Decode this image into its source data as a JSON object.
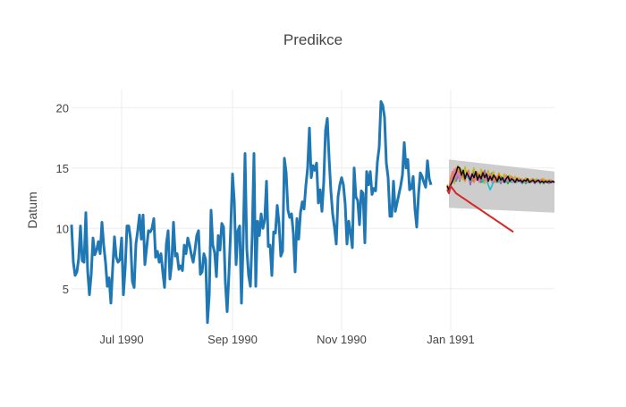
{
  "chart_data": {
    "type": "line",
    "title": "Predikce",
    "xlabel": "",
    "ylabel": "Datum",
    "x_range": [
      "1990-06-03",
      "1991-02-28"
    ],
    "ylim": [
      1.5,
      21.5
    ],
    "grid": true,
    "legend": "none",
    "x_ticks": [
      {
        "date": "1990-07-01",
        "label": "Jul 1990"
      },
      {
        "date": "1990-09-01",
        "label": "Sep 1990"
      },
      {
        "date": "1990-11-01",
        "label": "Nov 1990"
      },
      {
        "date": "1991-01-01",
        "label": "Jan 1991"
      }
    ],
    "y_ticks": [
      {
        "value": 5,
        "label": "5"
      },
      {
        "value": 10,
        "label": "10"
      },
      {
        "value": 15,
        "label": "15"
      },
      {
        "value": 20,
        "label": "20"
      }
    ],
    "colors": {
      "history": "#1f77b4",
      "band": "#c4c4c4",
      "trend": "#d62728",
      "grid": "#eeeeee",
      "forecasts": [
        "#2ca02c",
        "#9467bd",
        "#bcbd22",
        "#17becf",
        "#ff7f0e",
        "#e377c2",
        "#111111"
      ]
    },
    "history": {
      "start": "1990-06-03",
      "step_days": 1,
      "values": [
        10.3,
        7.2,
        6.1,
        6.4,
        7.5,
        10.2,
        7.3,
        7.2,
        11.3,
        6.5,
        4.5,
        6.2,
        9.2,
        7.8,
        8.2,
        8.9,
        7.9,
        10.5,
        8.6,
        7.2,
        5.2,
        5.9,
        3.8,
        6.7,
        9.3,
        7.6,
        7.2,
        7.4,
        9.2,
        4.5,
        6.7,
        10.2,
        10.2,
        9.1,
        5.6,
        5.1,
        8.7,
        9.8,
        11.1,
        9.1,
        11.1,
        7.0,
        8.4,
        9.8,
        9.7,
        10.0,
        10.8,
        7.6,
        8.1,
        7.2,
        7.9,
        6.4,
        5.1,
        8.7,
        9.8,
        5.8,
        7.1,
        10.5,
        7.7,
        7.9,
        6.6,
        6.9,
        6.5,
        8.6,
        7.9,
        9.2,
        8.6,
        7.8,
        7.2,
        8.2,
        9.4,
        9.8,
        6.2,
        6.4,
        7.9,
        7.4,
        2.2,
        4.5,
        11.5,
        8.6,
        8.0,
        6.0,
        9.4,
        8.2,
        10.4,
        10.1,
        5.5,
        3.1,
        6.2,
        10.0,
        14.5,
        12.2,
        7.0,
        9.8,
        10.2,
        3.8,
        9.2,
        16.2,
        8.3,
        6.1,
        5.2,
        9.4,
        16.2,
        5.2,
        10.6,
        9.4,
        11.2,
        10.0,
        10.7,
        13.9,
        8.5,
        8.6,
        6.1,
        9.7,
        9.6,
        11.9,
        10.4,
        7.7,
        8.1,
        15.8,
        14.6,
        11.5,
        10.9,
        11.2,
        9.6,
        6.4,
        10.8,
        9.1,
        11.3,
        12.2,
        11.6,
        13.5,
        15.0,
        18.3,
        14.2,
        15.2,
        14.8,
        15.4,
        12.1,
        13.2,
        11.4,
        13.8,
        18.1,
        19.1,
        15.8,
        13.1,
        11.2,
        10.1,
        8.7,
        12.6,
        13.6,
        14.2,
        13.6,
        12.0,
        8.7,
        10.6,
        9.6,
        8.4,
        15.0,
        12.6,
        12.3,
        10.3,
        13.1,
        12.9,
        8.8,
        14.7,
        13.6,
        14.7,
        12.8,
        13.3,
        13.1,
        15.5,
        16.7,
        20.5,
        20.2,
        19.2,
        15.4,
        14.2,
        11.0,
        11.0,
        13.9,
        11.4,
        12.1,
        12.8,
        13.5,
        14.4,
        17.1,
        15.0,
        15.7,
        13.2,
        13.3,
        14.3,
        11.6,
        10.1,
        12.8,
        14.6,
        14.3,
        13.8,
        13.4,
        15.6,
        14.1,
        13.6
      ]
    },
    "band": {
      "start": "1990-12-31",
      "end": "1991-02-28",
      "upper_start": 15.7,
      "upper_end": 14.7,
      "lower_start": 11.7,
      "lower_end": 11.3
    },
    "trend": {
      "start": "1990-12-30",
      "step_days": 1,
      "values": [
        13.2,
        12.9,
        13.5,
        13.3,
        13.1,
        12.9,
        12.8,
        12.7,
        12.6,
        12.5,
        12.4,
        12.3,
        12.2,
        12.1,
        12.0,
        11.9,
        11.8,
        11.7,
        11.6,
        11.5,
        11.4,
        11.3,
        11.2,
        11.1,
        11.0,
        10.9,
        10.8,
        10.7,
        10.6,
        10.5,
        10.4,
        10.3,
        10.2,
        10.1,
        10.0,
        9.9,
        9.8,
        9.7
      ]
    },
    "forecasts": [
      {
        "start": "1990-12-30",
        "values": [
          13.6,
          13.2,
          14.0,
          14.3,
          13.8,
          14.2,
          14.6,
          13.9,
          14.4,
          14.7,
          14.1,
          14.5,
          14.2,
          13.9,
          14.3,
          14.6,
          14.0,
          14.3,
          14.5,
          13.8,
          14.2,
          14.4,
          13.9,
          14.3,
          14.1,
          14.5,
          14.0,
          14.2,
          13.8,
          14.1,
          14.3,
          13.9,
          14.0,
          14.2,
          13.7,
          14.0,
          14.1,
          13.8,
          14.0,
          13.9,
          14.1,
          13.8,
          14.0,
          13.9,
          13.7,
          14.0,
          13.8,
          13.9,
          14.1,
          13.8,
          13.9,
          14.0,
          13.8,
          13.9,
          13.7,
          13.9,
          13.8,
          14.0,
          13.9,
          13.8,
          13.9
        ]
      },
      {
        "start": "1990-12-30",
        "values": [
          13.4,
          13.0,
          13.6,
          14.1,
          14.6,
          13.9,
          14.3,
          15.0,
          14.2,
          14.8,
          14.0,
          14.7,
          14.3,
          13.6,
          14.4,
          14.9,
          14.1,
          14.6,
          13.8,
          14.5,
          14.2,
          14.8,
          13.9,
          14.4,
          14.0,
          14.6,
          13.8,
          14.3,
          14.0,
          14.5,
          13.7,
          14.2,
          14.4,
          13.8,
          14.1,
          14.3,
          13.9,
          14.2,
          13.8,
          14.0,
          14.1,
          13.9,
          14.0,
          13.8,
          14.1,
          13.9,
          13.8,
          14.0,
          13.9,
          13.7,
          13.9,
          14.0,
          13.8,
          13.9,
          14.0,
          13.8,
          13.9,
          13.7,
          13.9,
          13.8,
          13.9
        ]
      },
      {
        "start": "1990-12-30",
        "values": [
          13.5,
          13.1,
          13.9,
          14.4,
          13.7,
          14.8,
          15.2,
          14.3,
          14.9,
          14.0,
          15.1,
          14.4,
          14.8,
          13.9,
          14.6,
          15.0,
          14.2,
          14.7,
          14.1,
          14.9,
          14.3,
          13.7,
          14.5,
          14.8,
          14.0,
          14.4,
          14.7,
          13.9,
          14.3,
          14.6,
          14.0,
          14.2,
          14.5,
          13.8,
          14.3,
          14.4,
          13.9,
          14.1,
          14.3,
          13.8,
          14.2,
          14.0,
          14.1,
          13.9,
          14.2,
          14.0,
          13.8,
          14.1,
          13.9,
          14.0,
          14.1,
          13.8,
          14.0,
          13.9,
          14.1,
          13.8,
          14.0,
          13.9,
          14.0,
          13.8,
          13.9
        ]
      },
      {
        "start": "1990-12-30",
        "values": [
          13.3,
          13.2,
          13.7,
          14.0,
          14.4,
          14.1,
          14.5,
          14.2,
          14.6,
          14.3,
          14.0,
          14.4,
          14.1,
          14.3,
          13.9,
          14.2,
          14.4,
          14.0,
          14.3,
          14.1,
          13.8,
          14.2,
          14.0,
          13.6,
          13.2,
          13.5,
          13.9,
          14.2,
          14.0,
          13.8,
          14.1,
          13.9,
          14.0,
          13.8,
          14.1,
          13.9,
          13.8,
          14.0,
          13.9,
          13.8,
          14.0,
          13.9,
          13.7,
          13.9,
          14.0,
          13.8,
          13.9,
          13.8,
          13.9,
          14.0,
          13.8,
          13.9,
          13.7,
          13.9,
          13.8,
          13.9,
          13.8,
          13.9,
          13.8,
          13.9,
          13.8
        ]
      },
      {
        "start": "1990-12-30",
        "values": [
          13.6,
          13.3,
          14.2,
          14.7,
          14.1,
          15.0,
          14.4,
          14.9,
          14.2,
          14.6,
          13.9,
          14.5,
          14.8,
          14.1,
          14.4,
          13.8,
          14.3,
          14.6,
          14.0,
          14.4,
          14.7,
          14.0,
          14.3,
          13.9,
          14.5,
          14.1,
          14.4,
          13.8,
          14.2,
          14.5,
          13.9,
          14.2,
          14.0,
          14.4,
          13.9,
          14.1,
          14.3,
          13.8,
          14.0,
          14.2,
          13.9,
          14.1,
          13.8,
          14.0,
          14.1,
          13.9,
          14.0,
          13.8,
          14.1,
          13.9,
          14.0,
          13.8,
          13.9,
          14.1,
          13.8,
          14.0,
          13.9,
          13.8,
          14.0,
          13.9,
          13.8
        ]
      },
      {
        "start": "1990-12-30",
        "values": [
          13.4,
          13.1,
          13.8,
          14.3,
          14.9,
          14.2,
          14.7,
          14.0,
          14.5,
          14.8,
          14.1,
          14.3,
          14.6,
          13.9,
          14.2,
          14.5,
          14.0,
          14.3,
          13.8,
          14.4,
          14.1,
          14.5,
          13.9,
          14.2,
          14.4,
          13.8,
          14.1,
          14.3,
          13.9,
          14.2,
          14.0,
          13.8,
          14.1,
          14.3,
          13.9,
          14.0,
          14.2,
          13.8,
          14.0,
          13.9,
          14.1,
          13.8,
          14.0,
          13.9,
          13.8,
          14.0,
          13.9,
          13.8,
          14.0,
          13.9,
          13.8,
          13.9,
          14.0,
          13.8,
          13.9,
          13.8,
          13.9,
          13.8,
          13.9,
          13.8,
          13.9
        ]
      },
      {
        "start": "1990-12-30",
        "values": [
          13.5,
          13.2,
          13.6,
          13.9,
          14.3,
          14.6,
          15.1,
          15.0,
          14.4,
          14.8,
          14.1,
          14.6,
          14.3,
          14.0,
          14.5,
          14.2,
          14.7,
          14.0,
          14.4,
          14.1,
          14.6,
          14.2,
          14.5,
          13.9,
          14.3,
          14.0,
          14.4,
          14.2,
          13.9,
          14.3,
          14.0,
          14.2,
          13.8,
          14.1,
          14.3,
          13.9,
          14.1,
          14.0,
          13.8,
          14.1,
          13.9,
          14.0,
          13.8,
          14.0,
          13.9,
          14.1,
          13.8,
          13.9,
          14.0,
          13.8,
          13.9,
          14.0,
          13.8,
          13.9,
          13.8,
          13.9,
          13.8,
          13.9,
          13.8,
          13.9,
          13.8
        ]
      }
    ]
  }
}
